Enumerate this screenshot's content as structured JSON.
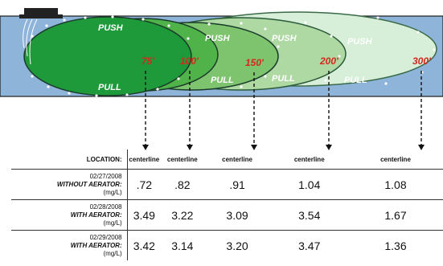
{
  "distances": [
    "75'",
    "100'",
    "150'",
    "200'",
    "300'"
  ],
  "push_label": "PUSH",
  "pull_label": "PULL",
  "table": {
    "location_label": "LOCATION:",
    "centerline_label": "centerline",
    "rows": [
      {
        "date": "02/27/2008",
        "condition": "WITHOUT AERATOR:",
        "unit": "(mg/L)",
        "values": [
          ".72",
          ".82",
          ".91",
          "1.04",
          "1.08"
        ]
      },
      {
        "date": "02/28/2008",
        "condition": "WITH AERATOR:",
        "unit": "(mg/L)",
        "values": [
          "3.49",
          "3.22",
          "3.09",
          "3.54",
          "1.67"
        ]
      },
      {
        "date": "02/29/2008",
        "condition": "WITH AERATOR:",
        "unit": "(mg/L)",
        "values": [
          "3.42",
          "3.14",
          "3.20",
          "3.47",
          "1.36"
        ]
      }
    ]
  },
  "colors": {
    "water": "#8fb4da",
    "zone_75": "#1f9a3a",
    "zone_100": "#4fb34a",
    "zone_150": "#7ec46f",
    "zone_200": "#aed9a3",
    "zone_300": "#d7eed8",
    "distance_text": "#d4291c",
    "ellipse_stroke": "#1a3c2a"
  }
}
